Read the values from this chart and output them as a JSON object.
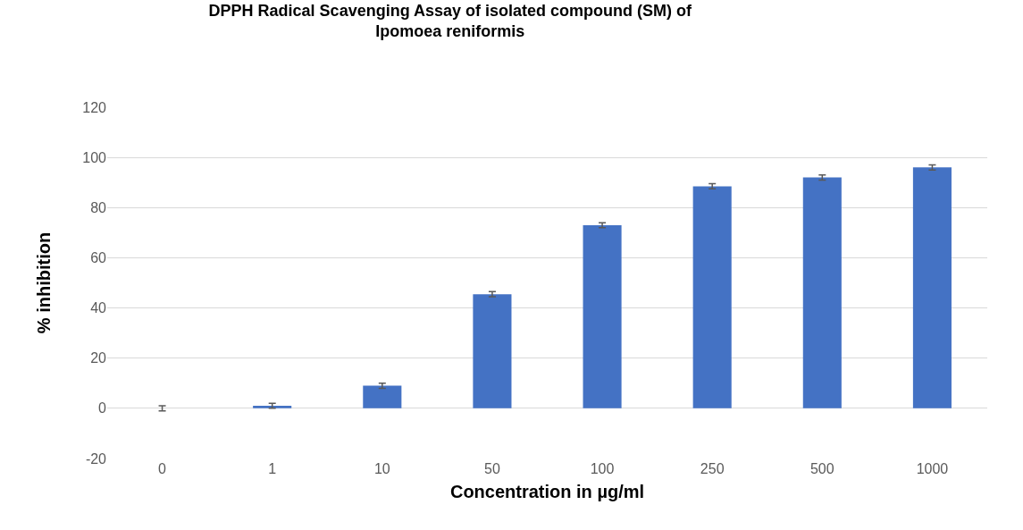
{
  "chart_data": {
    "type": "bar",
    "title": "DPPH Radical Scavenging Assay of isolated compound (SM) of Ipomoea reniformis",
    "xlabel": "Concentration in µg/ml",
    "ylabel": "% inhibition",
    "categories": [
      "0",
      "1",
      "10",
      "50",
      "100",
      "250",
      "500",
      "1000"
    ],
    "values": [
      0,
      1,
      9,
      45.5,
      73,
      88.5,
      92,
      96
    ],
    "errors": [
      1,
      1,
      1,
      1,
      1,
      1,
      1,
      1
    ],
    "color": "#4472c4",
    "ylim": [
      -20,
      120
    ],
    "yticks": [
      -20,
      0,
      20,
      40,
      60,
      80,
      100,
      120
    ],
    "grid": "y",
    "legend": false
  }
}
